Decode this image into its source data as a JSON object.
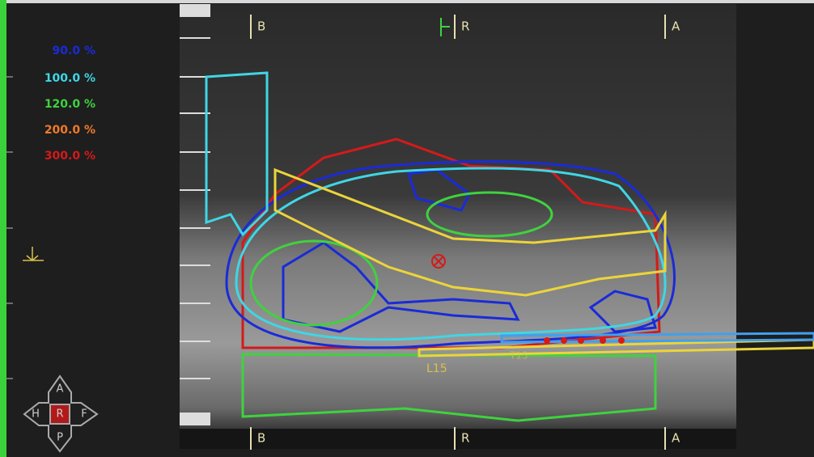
{
  "isodose_legend": [
    {
      "label": "90.0 %",
      "color": "#1a2bd8"
    },
    {
      "label": "100.0 %",
      "color": "#3fd6e6"
    },
    {
      "label": "120.0 %",
      "color": "#3fd23f"
    },
    {
      "label": "200.0 %",
      "color": "#f07a2a"
    },
    {
      "label": "300.0 %",
      "color": "#d41a1a"
    }
  ],
  "top_markers": [
    "B",
    "R",
    "A"
  ],
  "bottom_markers": [
    "B",
    "R",
    "A"
  ],
  "structure_labels": [
    "L15",
    "T15"
  ],
  "orientation": {
    "up": "A",
    "left": "H",
    "center": "R",
    "right": "F",
    "down": "P"
  }
}
